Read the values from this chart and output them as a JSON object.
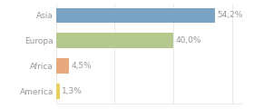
{
  "categories": [
    "Asia",
    "Europa",
    "Africa",
    "America"
  ],
  "values": [
    54.2,
    40.0,
    4.5,
    1.3
  ],
  "bar_colors": [
    "#7ba4c4",
    "#b5c98e",
    "#e8a97e",
    "#e8d060"
  ],
  "labels": [
    "54,2%",
    "40,0%",
    "4,5%",
    "1,3%"
  ],
  "xlim": [
    0,
    63
  ],
  "background_color": "#ffffff",
  "text_color": "#999999",
  "label_fontsize": 6.5,
  "tick_fontsize": 6.5,
  "bar_height": 0.6,
  "grid_color": "#e0e0e0",
  "grid_xticks": [
    0,
    20,
    40,
    60
  ]
}
